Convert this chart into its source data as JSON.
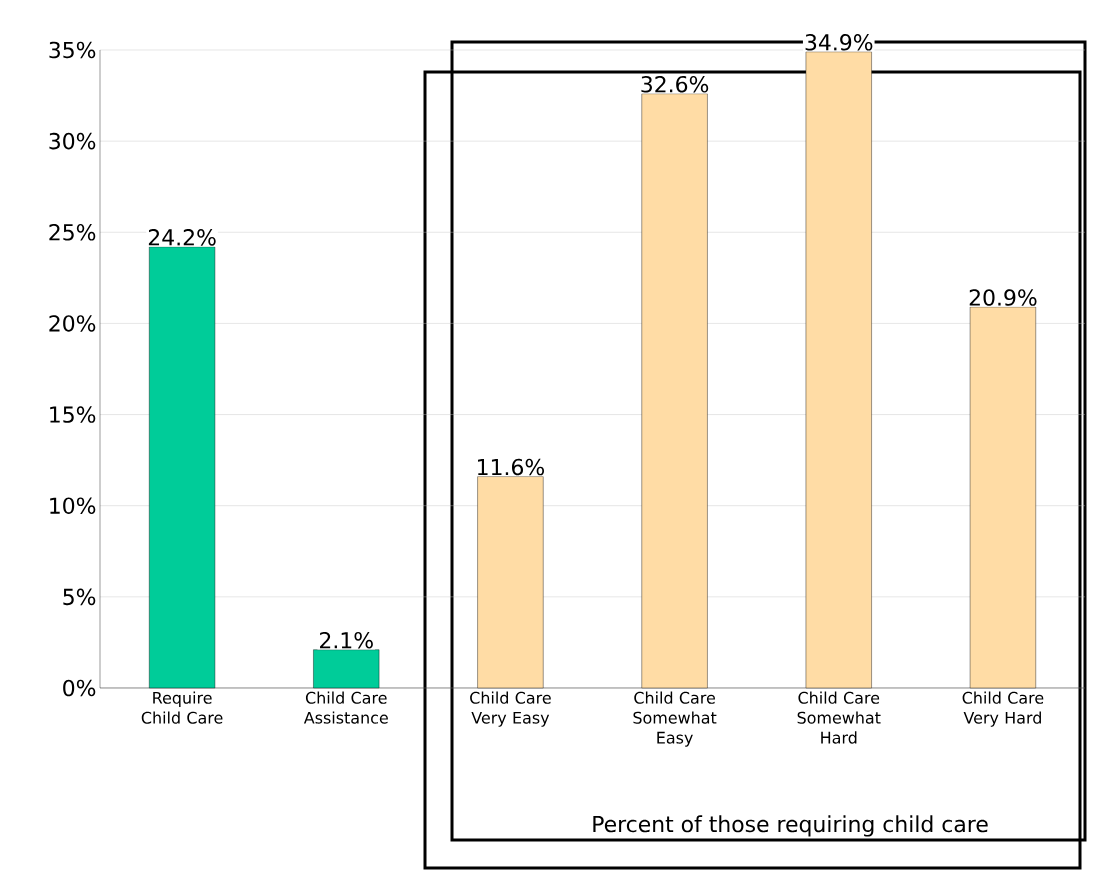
{
  "chart_data": {
    "type": "bar",
    "categories": [
      "Require Child Care",
      "Child Care Assistance",
      "Child Care Very Easy",
      "Child Care Somewhat Easy",
      "Child Care Somewhat Hard",
      "Child Care Very Hard"
    ],
    "values": [
      24.2,
      2.1,
      11.6,
      32.6,
      34.9,
      20.9
    ],
    "colors": [
      "#00cc99",
      "#00cc99",
      "#ffdca5",
      "#ffdca5",
      "#ffdca5",
      "#ffdca5"
    ],
    "value_labels": [
      "24.2%",
      "2.1%",
      "11.6%",
      "32.6%",
      "34.9%",
      "20.9%"
    ],
    "ylim": [
      0,
      35
    ],
    "yticks": [
      {
        "value": 0,
        "label": "0%"
      },
      {
        "value": 5,
        "label": "5%"
      },
      {
        "value": 10,
        "label": "10%"
      },
      {
        "value": 15,
        "label": "15%"
      },
      {
        "value": 20,
        "label": "20%"
      },
      {
        "value": 25,
        "label": "25%"
      },
      {
        "value": 30,
        "label": "30%"
      },
      {
        "value": 35,
        "label": "35%"
      }
    ],
    "grid": "y",
    "annotations": [
      "Percent of those requiring child care"
    ]
  }
}
